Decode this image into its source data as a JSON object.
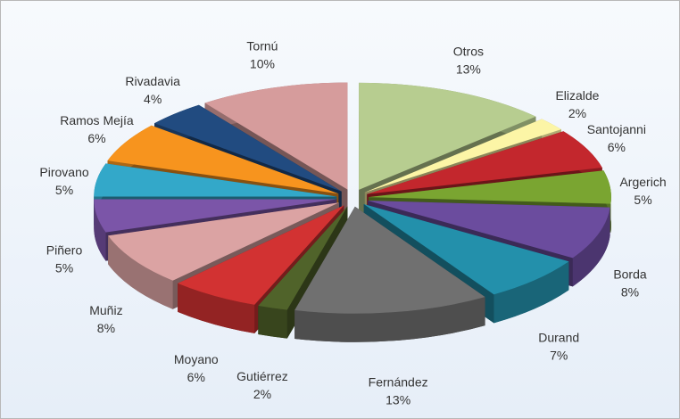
{
  "chart_data": {
    "type": "pie3d",
    "categories": [
      "Otros",
      "Elizalde",
      "Santojanni",
      "Argerich",
      "Borda",
      "Durand",
      "Fernández",
      "Gutiérrez",
      "Moyano",
      "Muñiz",
      "Piñero",
      "Pirovano",
      "Ramos Mejía",
      "Rivadavia",
      "Tornú"
    ],
    "values": [
      13,
      2,
      6,
      5,
      8,
      7,
      13,
      2,
      6,
      8,
      5,
      5,
      6,
      4,
      10
    ],
    "value_labels": [
      "13%",
      "2%",
      "6%",
      "5%",
      "8%",
      "7%",
      "13%",
      "2%",
      "6%",
      "8%",
      "5%",
      "5%",
      "6%",
      "4%",
      "10%"
    ],
    "colors": [
      "#b7cd90",
      "#fcf5a6",
      "#c3272d",
      "#7aa531",
      "#6b4c9e",
      "#2390ab",
      "#707070",
      "#50632a",
      "#d23232",
      "#dba3a3",
      "#7b55a8",
      "#33a8c9",
      "#f7941e",
      "#214b80",
      "#d69c9c"
    ]
  }
}
